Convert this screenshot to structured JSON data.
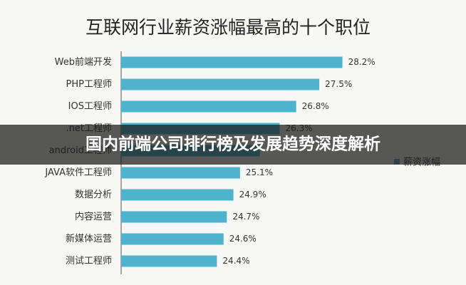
{
  "chart_data": {
    "type": "hbar",
    "title": "互联网行业薪资涨幅最高的十个职位",
    "categories": [
      "Web前端开发",
      "PHP工程师",
      "IOS工程师",
      ".net工程师",
      "android工程师",
      "JAVA软件工程师",
      "数据分析",
      "内容运营",
      "新媒体运营",
      "测试工程师"
    ],
    "series": [
      {
        "name": "薪资涨幅",
        "color": "#4eb3cd",
        "values": [
          28.2,
          27.5,
          26.8,
          26.3,
          25.7,
          25.1,
          24.9,
          24.7,
          24.6,
          24.4
        ],
        "value_labels": [
          "28.2%",
          "27.5%",
          "26.8%",
          "26.3%",
          null,
          "25.1%",
          "24.9%",
          "24.7%",
          "24.6%",
          "24.4%"
        ]
      }
    ],
    "xlim": [
      21.5,
      30
    ],
    "legend": "right"
  },
  "banner": "国内前端公司排行榜及发展趋势深度解析"
}
